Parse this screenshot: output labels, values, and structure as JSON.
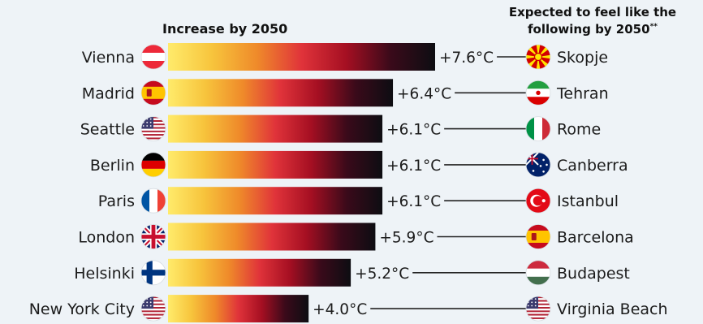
{
  "header": {
    "left": "Increase by 2050",
    "right_line1": "Expected to feel like the",
    "right_line2": "following by 2050",
    "right_marker": "**"
  },
  "colors": {
    "background": "#eef3f7",
    "gradient": [
      "#ffeb6b",
      "#f7c43c",
      "#ef8a2a",
      "#e0333a",
      "#a50f22",
      "#3a0a1a",
      "#0d0d12"
    ],
    "connector": "#222222"
  },
  "chart_data": {
    "type": "bar",
    "orientation": "horizontal",
    "unit": "°C",
    "xlim": [
      0,
      7.6
    ],
    "categories": [
      "Vienna",
      "Madrid",
      "Seattle",
      "Berlin",
      "Paris",
      "London",
      "Helsinki",
      "New York City"
    ],
    "values": [
      7.6,
      6.4,
      6.1,
      6.1,
      6.1,
      5.9,
      5.2,
      4.0
    ],
    "value_labels": [
      "+7.6°C",
      "+6.4°C",
      "+6.1°C",
      "+6.1°C",
      "+6.1°C",
      "+5.9°C",
      "+5.2°C",
      "+4.0°C"
    ],
    "city_flags": [
      "austria-flag-icon",
      "spain-flag-icon",
      "usa-flag-icon",
      "germany-flag-icon",
      "france-flag-icon",
      "uk-flag-icon",
      "finland-flag-icon",
      "usa-flag-icon"
    ],
    "equivalents": [
      "Skopje",
      "Tehran",
      "Rome",
      "Canberra",
      "Istanbul",
      "Barcelona",
      "Budapest",
      "Virginia Beach"
    ],
    "equivalent_flags": [
      "north-macedonia-flag-icon",
      "iran-flag-icon",
      "italy-flag-icon",
      "australia-flag-icon",
      "turkey-flag-icon",
      "spain-flag-icon",
      "hungary-flag-icon",
      "usa-flag-icon"
    ]
  }
}
